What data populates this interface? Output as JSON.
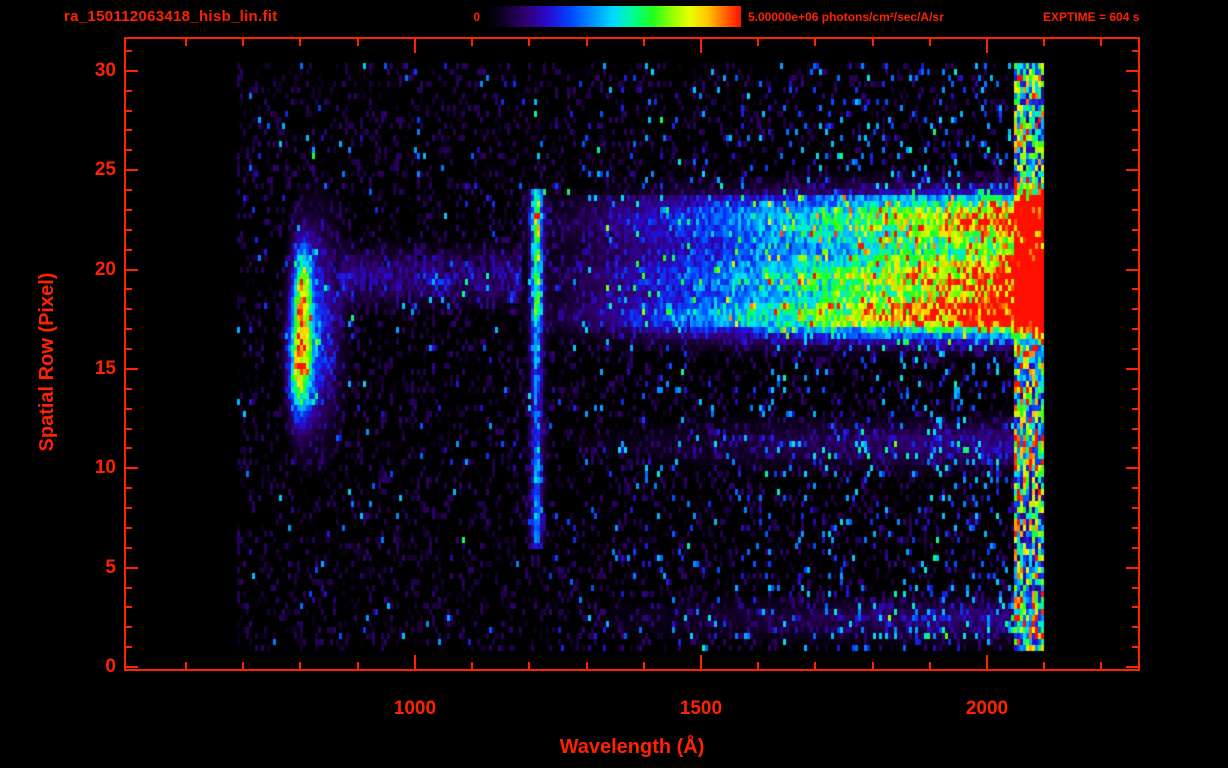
{
  "colors": {
    "accent": "#ff2200",
    "background": "#000000"
  },
  "header": {
    "filename": "ra_150112063418_hisb_lin.fit",
    "exptime": "EXPTIME = 604 s"
  },
  "colorbar": {
    "min_label": "0",
    "max_label": "5.00000e+06 photons/cm²/sec/A/sr",
    "stops": [
      [
        0.0,
        0,
        0,
        0
      ],
      [
        0.06,
        16,
        0,
        36
      ],
      [
        0.15,
        48,
        0,
        110
      ],
      [
        0.24,
        40,
        10,
        205
      ],
      [
        0.33,
        0,
        70,
        255
      ],
      [
        0.42,
        0,
        150,
        255
      ],
      [
        0.5,
        0,
        220,
        255
      ],
      [
        0.58,
        0,
        255,
        140
      ],
      [
        0.65,
        30,
        255,
        30
      ],
      [
        0.73,
        150,
        255,
        0
      ],
      [
        0.8,
        235,
        255,
        0
      ],
      [
        0.87,
        255,
        195,
        0
      ],
      [
        0.93,
        255,
        110,
        0
      ],
      [
        1.0,
        255,
        15,
        0
      ]
    ]
  },
  "chart_data": {
    "type": "heatmap",
    "title": "ra_150112063418_hisb_lin.fit",
    "xlabel": "Wavelength (Å)",
    "ylabel": "Spatial Row (Pixel)",
    "x_ticks": [
      1000,
      1500,
      2000
    ],
    "x_minor_step": 100,
    "x_minor_range": [
      600,
      2200
    ],
    "y_ticks": [
      0,
      5,
      10,
      15,
      20,
      25,
      30
    ],
    "y_minor_step": 1,
    "y_minor_range": [
      0,
      31
    ],
    "x_range": [
      495,
      2264
    ],
    "y_range": [
      -0.1,
      31.6
    ],
    "data_x_range": [
      690,
      2102
    ],
    "data_y_range": [
      0.8,
      30.4
    ],
    "colorbar_min": 0,
    "colorbar_max": 5000000,
    "colorbar_units": "photons/cm²/sec/A/sr",
    "exposure_seconds": 604,
    "grid": false,
    "features": {
      "noise": {
        "name": "background-noise",
        "zero_prob": 0.72,
        "base_max": 0.15,
        "speckle_base": 0.018,
        "speckle_gain": 0.11,
        "speckle_ramp_start": 1250,
        "speckle_ramp_end": 2050,
        "speckle_min": 0.18,
        "speckle_max": 0.48
      },
      "airglow_blob": {
        "name": "airglow-emission-blob",
        "components": [
          {
            "x": 800,
            "sx": 13,
            "y": 15.4,
            "sy": 1.9,
            "a": 0.85
          },
          {
            "x": 803,
            "sx": 11,
            "y": 19.2,
            "sy": 1.5,
            "a": 0.6
          },
          {
            "x": 830,
            "sx": 26,
            "y": 17.2,
            "sy": 3.3,
            "a": 0.3
          }
        ]
      },
      "emission_line": {
        "name": "lyman-alpha-line",
        "x": 1213,
        "sx": 6.5,
        "wing_sx": 14,
        "wing_a": 0.12,
        "row_min": 5.8,
        "row_max": 24.2,
        "base": 0.28,
        "bumps": [
          {
            "y": 19.8,
            "sy": 2.8,
            "a": 0.34
          },
          {
            "y": 22.9,
            "sy": 0.9,
            "a": 0.3
          },
          {
            "y": 9.5,
            "sy": 2.5,
            "a": 0.1
          }
        ]
      },
      "continuum_bands": {
        "name": "continuum-spectra",
        "ramp_start": 1180,
        "ramp_end": 2050,
        "gamma": 1.1,
        "fill_min": 17.0,
        "fill_max": 23.8,
        "fill_a": 0.2,
        "bands": [
          {
            "y": 17.6,
            "sy": 0.8,
            "a": 0.95
          },
          {
            "y": 19.7,
            "sy": 0.85,
            "a": 0.8
          },
          {
            "y": 22.4,
            "sy": 1.0,
            "a": 0.78
          },
          {
            "y": 11.2,
            "sy": 0.8,
            "a": 0.2
          },
          {
            "y": 2.4,
            "sy": 0.7,
            "a": 0.18
          }
        ]
      },
      "faint_trace": {
        "name": "faint-continuum-trace",
        "x_min": 865,
        "x_max": 1185,
        "y": 19.6,
        "sy": 0.9,
        "a": 0.16
      },
      "edge_burst": {
        "name": "right-edge-burst",
        "x_min": 2045,
        "x_max": 2100,
        "a_min": 0.15,
        "a_max": 0.95
      }
    }
  }
}
